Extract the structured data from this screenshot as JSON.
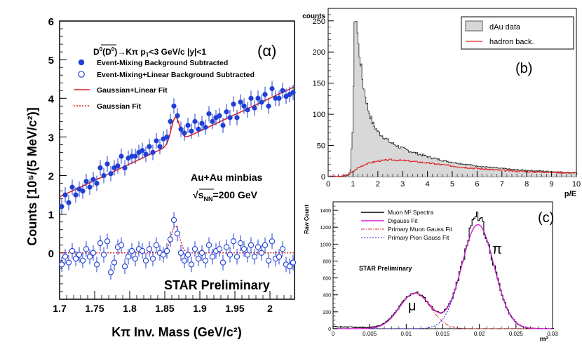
{
  "chart_data": [
    {
      "panel": "(α)",
      "type": "scatter",
      "title": "D0(D0bar)→Kπ pT<3 GeV/c |y|<1",
      "xlabel": "Kπ Inv. Mass (GeV/c²)",
      "ylabel": "Counts [10⁵/(5 MeV/c²)]",
      "xlim": [
        1.7,
        2.035
      ],
      "ylim": [
        -1.2,
        6
      ],
      "xticks": [
        "1.7",
        "1.75",
        "1.8",
        "1.85",
        "1.9",
        "1.95",
        "2"
      ],
      "yticks": [
        "0",
        "1",
        "2",
        "3",
        "4",
        "5",
        "6"
      ],
      "annotations": [
        "Au+Au minbias",
        "√sNN=200 GeV",
        "STAR Preliminary"
      ],
      "legend": [
        "Event-Mixing Background Subtracted",
        "Event-Mixing+Linear Background Subtracted",
        "Gaussian+Linear Fit",
        "Gaussian Fit"
      ],
      "series": [
        {
          "name": "Event-Mixing Background Subtracted",
          "style": "filled-circle",
          "color": "#1f3fd6",
          "x": [
            1.703,
            1.708,
            1.713,
            1.718,
            1.723,
            1.728,
            1.733,
            1.738,
            1.743,
            1.748,
            1.753,
            1.758,
            1.763,
            1.768,
            1.773,
            1.778,
            1.783,
            1.788,
            1.793,
            1.798,
            1.803,
            1.808,
            1.813,
            1.818,
            1.823,
            1.828,
            1.833,
            1.838,
            1.843,
            1.848,
            1.853,
            1.858,
            1.863,
            1.868,
            1.873,
            1.878,
            1.883,
            1.888,
            1.893,
            1.898,
            1.903,
            1.908,
            1.913,
            1.918,
            1.923,
            1.928,
            1.933,
            1.938,
            1.943,
            1.948,
            1.953,
            1.958,
            1.963,
            1.968,
            1.973,
            1.978,
            1.983,
            1.988,
            1.993,
            1.998,
            2.003,
            2.008,
            2.013,
            2.018,
            2.023,
            2.028,
            2.033
          ],
          "y": [
            1.2,
            1.5,
            1.3,
            1.7,
            1.5,
            1.65,
            1.6,
            1.85,
            1.7,
            1.9,
            1.8,
            2.2,
            2.0,
            2.3,
            2.05,
            2.2,
            2.25,
            2.5,
            2.2,
            2.45,
            2.5,
            2.5,
            2.6,
            2.65,
            2.55,
            2.75,
            2.6,
            2.9,
            2.75,
            2.95,
            3.0,
            3.4,
            3.8,
            3.55,
            3.2,
            3.1,
            3.3,
            3.15,
            3.4,
            3.2,
            3.35,
            3.25,
            3.6,
            3.4,
            3.5,
            3.55,
            3.3,
            3.65,
            3.5,
            3.85,
            3.5,
            3.9,
            3.8,
            3.7,
            4.0,
            3.75,
            4.0,
            3.9,
            4.1,
            3.8,
            4.25,
            4.0,
            4.0,
            4.2,
            4.05,
            4.1,
            4.15
          ]
        },
        {
          "name": "Event-Mixing+Linear Background Subtracted",
          "style": "open-circle",
          "color": "#1f3fd6",
          "x": [
            1.703,
            1.708,
            1.713,
            1.718,
            1.723,
            1.728,
            1.733,
            1.738,
            1.743,
            1.748,
            1.753,
            1.758,
            1.763,
            1.768,
            1.773,
            1.778,
            1.783,
            1.788,
            1.793,
            1.798,
            1.803,
            1.808,
            1.813,
            1.818,
            1.823,
            1.828,
            1.833,
            1.838,
            1.843,
            1.848,
            1.853,
            1.858,
            1.863,
            1.868,
            1.873,
            1.878,
            1.883,
            1.888,
            1.893,
            1.898,
            1.903,
            1.908,
            1.913,
            1.918,
            1.923,
            1.928,
            1.933,
            1.938,
            1.943,
            1.948,
            1.953,
            1.958,
            1.963,
            1.968,
            1.973,
            1.978,
            1.983,
            1.988,
            1.993,
            1.998,
            2.003,
            2.008,
            2.013,
            2.018,
            2.023,
            2.028,
            2.033
          ],
          "y": [
            -0.3,
            -0.1,
            -0.25,
            0.05,
            -0.15,
            -0.05,
            -0.2,
            0.1,
            -0.1,
            0.0,
            -0.3,
            0.25,
            -0.05,
            0.3,
            -0.5,
            -0.25,
            0.15,
            0.2,
            -0.35,
            -0.1,
            0.05,
            -0.15,
            0.1,
            0.05,
            -0.2,
            0.1,
            -0.15,
            0.2,
            0.0,
            -0.05,
            0.05,
            0.35,
            0.85,
            0.5,
            0.0,
            -0.2,
            -0.05,
            -0.3,
            0.1,
            -0.15,
            0.0,
            -0.2,
            0.2,
            -0.1,
            0.05,
            0.1,
            -0.25,
            0.15,
            -0.05,
            0.3,
            -0.1,
            0.25,
            0.1,
            -0.05,
            0.2,
            -0.1,
            0.15,
            0.0,
            0.2,
            -0.2,
            0.3,
            -0.15,
            -0.1,
            0.1,
            -0.3,
            -0.35,
            -0.25
          ]
        },
        {
          "name": "Gaussian+Linear Fit",
          "style": "solid-line",
          "color": "#e02020",
          "x": [
            1.7,
            2.035
          ],
          "y": [
            1.45,
            4.3
          ],
          "peak": {
            "mean": 1.865,
            "sigma": 0.006,
            "amp": 0.65
          }
        },
        {
          "name": "Gaussian Fit",
          "style": "dotted-line",
          "color": "#e02020",
          "x": [
            1.7,
            2.035
          ],
          "y": [
            0,
            0
          ],
          "peak": {
            "mean": 1.865,
            "sigma": 0.006,
            "amp": 0.7
          }
        }
      ]
    },
    {
      "panel": "(b)",
      "type": "area",
      "xlabel": "p/E",
      "ylabel": "counts",
      "xlim": [
        0,
        10
      ],
      "ylim": [
        0,
        270
      ],
      "xticks": [
        "0",
        "1",
        "2",
        "3",
        "4",
        "5",
        "6",
        "7",
        "8",
        "9",
        "10"
      ],
      "yticks": [
        "0",
        "50",
        "100",
        "150",
        "200",
        "250"
      ],
      "legend": [
        "dAu data",
        "hadron back."
      ],
      "series": [
        {
          "name": "dAu data",
          "style": "filled-histogram",
          "color": "#d8d8d8",
          "x": [
            0.0,
            0.5,
            0.8,
            0.9,
            1.0,
            1.05,
            1.1,
            1.15,
            1.2,
            1.3,
            1.4,
            1.5,
            1.6,
            1.8,
            2.0,
            2.5,
            3.0,
            3.5,
            4.0,
            4.5,
            5.0,
            5.5,
            6.0,
            6.5,
            7.0,
            7.5,
            8.0,
            8.5,
            9.0,
            9.5,
            10.0
          ],
          "y": [
            0,
            0,
            2,
            10,
            90,
            230,
            258,
            250,
            215,
            185,
            150,
            130,
            110,
            85,
            72,
            55,
            45,
            38,
            32,
            27,
            23,
            20,
            17,
            15,
            13,
            11,
            10,
            9,
            8,
            7,
            6
          ]
        },
        {
          "name": "hadron back.",
          "style": "line",
          "color": "#e02020",
          "x": [
            0.0,
            0.5,
            0.8,
            1.0,
            1.2,
            1.5,
            2.0,
            2.5,
            3.0,
            4.0,
            5.0,
            6.0,
            7.0,
            8.0,
            9.0,
            10.0
          ],
          "y": [
            0,
            0,
            3,
            8,
            14,
            20,
            25,
            27,
            26,
            22,
            17,
            13,
            10,
            8,
            7,
            6
          ]
        }
      ]
    },
    {
      "panel": "(c)",
      "type": "line",
      "xlabel": "m²",
      "ylabel": "Raw Count",
      "xlim": [
        0,
        0.03
      ],
      "ylim": [
        0,
        1500
      ],
      "xticks": [
        "0",
        "0.005",
        "0.01",
        "0.015",
        "0.02",
        "0.025",
        "0.03"
      ],
      "yticks": [
        "0",
        "200",
        "400",
        "600",
        "800",
        "1000",
        "1200",
        "1400"
      ],
      "annotations": [
        "STAR Preliminary",
        "μ",
        "π"
      ],
      "legend": [
        "Muon M² Spectra",
        "Digauss Fit",
        "Primary Muon Gauss Fit",
        "Primary Pion Gauss Fit"
      ],
      "gauss": {
        "muon": {
          "mean": 0.0112,
          "sigma": 0.0021,
          "amp": 420
        },
        "pion": {
          "mean": 0.0198,
          "sigma": 0.0022,
          "amp": 1230
        }
      },
      "series": [
        {
          "name": "Muon M² Spectra",
          "style": "histogram",
          "color": "#000000"
        },
        {
          "name": "Digauss Fit",
          "style": "line",
          "color": "#d020d0"
        },
        {
          "name": "Primary Muon Gauss Fit",
          "style": "dash-dot",
          "color": "#e02020"
        },
        {
          "name": "Primary Pion Gauss Fit",
          "style": "dotted",
          "color": "#2020e0"
        }
      ]
    }
  ],
  "texts": {
    "a_panel": "(α)",
    "a_title_pre": "D",
    "a_title_sup0": "0",
    "a_title_paren": "(D",
    "a_title_sup0b": "0",
    "a_title_post": ")→Kπ  p",
    "a_title_sub": "T",
    "a_title_tail": "<3 GeV/c  |y|<1",
    "a_ylabel": "Counts [10⁵/(5 MeV/c²)]",
    "a_xlabel": "Kπ Inv. Mass (GeV/c²)",
    "a_ann1": "Au+Au minbias",
    "a_ann2": "√s",
    "a_ann2_sub": "NN",
    "a_ann2_tail": "=200 GeV",
    "a_prelim": "STAR Preliminary",
    "b_panel": "(b)",
    "c_panel": "(c)",
    "c_prelim": "STAR Preliminary",
    "c_mu": "μ",
    "c_pi": "π"
  }
}
